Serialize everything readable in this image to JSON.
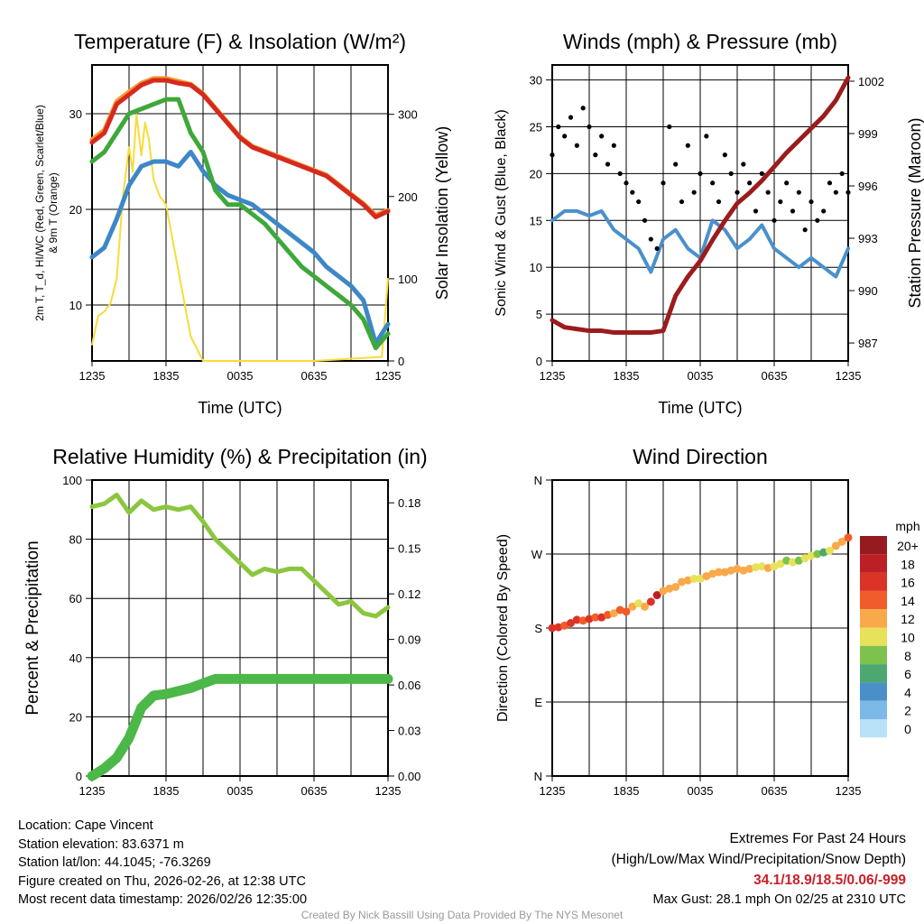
{
  "chart_data": [
    {
      "type": "line",
      "title": "Temperature (F) & Insolation (W/m²)",
      "xlabel": "Time (UTC)",
      "ylabel": "2m T, T_d, HI/WC (Red, Green, Scarlet/Blue) & 9m T (Orange)",
      "ylabel_right": "Solar Insolation (Yellow)",
      "x_hours": [
        0,
        1,
        2,
        3,
        4,
        5,
        6,
        7,
        8,
        9,
        10,
        11,
        12,
        13,
        14,
        15,
        16,
        17,
        18,
        19,
        20,
        21,
        22,
        23,
        24
      ],
      "xticks": [
        "1235",
        "1835",
        "0035",
        "0635",
        "1235"
      ],
      "ylim": [
        4.15,
        35.1
      ],
      "yticks": [
        10,
        20,
        30
      ],
      "ylim_right": [
        0,
        360
      ],
      "yticks_right": [
        0,
        100,
        200,
        300
      ],
      "series": [
        {
          "name": "2m T",
          "color": "#d62a1f",
          "axis": "left",
          "values": [
            27,
            28,
            31,
            32,
            33,
            33.5,
            33.5,
            33.2,
            33,
            32,
            30.5,
            29,
            27.5,
            26.5,
            26,
            25.5,
            25,
            24.5,
            24,
            23.5,
            22.5,
            21.5,
            20.5,
            19.2,
            19.8
          ]
        },
        {
          "name": "9m T",
          "color": "#f59a32",
          "axis": "left",
          "values": [
            27.3,
            28.3,
            31.3,
            32.3,
            33.2,
            33.7,
            33.7,
            33.4,
            33.1,
            32.1,
            30.6,
            29.1,
            27.6,
            26.6,
            26.1,
            25.6,
            25.1,
            24.6,
            24.1,
            23.6,
            22.6,
            21.6,
            20.6,
            19.4,
            19.9
          ]
        },
        {
          "name": "Td",
          "color": "#3ea83a",
          "axis": "left",
          "values": [
            25,
            26,
            28,
            30,
            30.5,
            31,
            31.5,
            31.5,
            28,
            26,
            22,
            20.5,
            20.5,
            19.5,
            18.5,
            17,
            15.5,
            14,
            13,
            12,
            11,
            10,
            8.5,
            5.5,
            7
          ]
        },
        {
          "name": "HI/WC",
          "color": "#3d87c8",
          "axis": "left",
          "values": [
            15,
            16,
            19,
            22.5,
            24.5,
            25,
            25,
            24.5,
            26,
            24,
            22.5,
            21.5,
            21,
            20.5,
            19.5,
            18.5,
            17.5,
            16.5,
            15.5,
            14,
            13,
            12,
            10.5,
            6,
            8
          ]
        },
        {
          "name": "Solar Insolation",
          "color": "#f7dc3a",
          "axis": "right",
          "x": [
            0,
            0.5,
            1,
            1.5,
            2,
            2.5,
            3,
            3.3,
            3.6,
            4,
            4.3,
            4.6,
            5,
            5.5,
            6,
            7,
            8,
            9,
            12,
            18,
            23.5,
            24
          ],
          "values": [
            20,
            55,
            60,
            70,
            100,
            200,
            260,
            230,
            300,
            250,
            290,
            270,
            220,
            200,
            190,
            110,
            30,
            0,
            0,
            0,
            5,
            100
          ]
        }
      ]
    },
    {
      "type": "line",
      "title": "Winds (mph) & Pressure (mb)",
      "xlabel": "Time (UTC)",
      "ylabel": "Sonic Wind & Gust (Blue, Black)",
      "ylabel_right": "Station Pressure (Maroon)",
      "xticks": [
        "1235",
        "1835",
        "0035",
        "0635",
        "1235"
      ],
      "ylim": [
        0,
        31.6
      ],
      "yticks": [
        0,
        5,
        10,
        15,
        20,
        25,
        30
      ],
      "ylim_right": [
        985.97,
        1002.93
      ],
      "yticks_right": [
        987,
        990,
        993,
        996,
        999,
        1002
      ],
      "series": [
        {
          "name": "Sonic Wind",
          "color": "#4a90cc",
          "axis": "left",
          "x": [
            0,
            1,
            2,
            3,
            4,
            5,
            6,
            7,
            8,
            9,
            10,
            11,
            12,
            13,
            14,
            15,
            16,
            17,
            18,
            19,
            20,
            21,
            22,
            23,
            24
          ],
          "values": [
            15,
            16,
            16,
            15.5,
            16,
            14,
            13,
            12,
            9.5,
            13,
            14,
            12,
            11,
            15,
            14,
            12,
            13,
            14.5,
            12,
            11,
            10,
            11,
            10,
            9,
            12
          ]
        },
        {
          "name": "Gust",
          "color": "#000000",
          "axis": "left",
          "type": "scatter",
          "x": [
            0,
            0.5,
            1,
            1.5,
            2,
            2.5,
            3,
            3.5,
            4,
            4.5,
            5,
            5.5,
            6,
            6.5,
            7,
            7.5,
            8,
            8.5,
            9,
            9.5,
            10,
            10.5,
            11,
            11.5,
            12,
            12.5,
            13,
            13.5,
            14,
            14.5,
            15,
            15.5,
            16,
            16.5,
            17,
            17.5,
            18,
            18.5,
            19,
            19.5,
            20,
            20.5,
            21,
            21.5,
            22,
            22.5,
            23,
            23.5,
            24
          ],
          "values": [
            22,
            25,
            24,
            26,
            23,
            27,
            25,
            22,
            24,
            21,
            23,
            20,
            19,
            18,
            17,
            15,
            13,
            12,
            19,
            25,
            21,
            17,
            23,
            18,
            20,
            24,
            19,
            17,
            22,
            20,
            18,
            21,
            19,
            16,
            20,
            18,
            15,
            17,
            19,
            16,
            18,
            14,
            17,
            15,
            16,
            19,
            18,
            20,
            18
          ]
        },
        {
          "name": "Station Pressure",
          "color": "#9b1c1c",
          "axis": "right",
          "x": [
            0,
            1,
            2,
            3,
            4,
            5,
            6,
            7,
            8,
            9,
            10,
            11,
            12,
            13,
            14,
            15,
            16,
            17,
            18,
            19,
            20,
            21,
            22,
            23,
            24
          ],
          "values": [
            988.3,
            987.9,
            987.8,
            987.7,
            987.7,
            987.6,
            987.6,
            987.6,
            987.6,
            987.7,
            989.7,
            990.8,
            991.7,
            992.9,
            994.0,
            995.0,
            995.6,
            996.3,
            997.1,
            997.9,
            998.6,
            999.3,
            1000.0,
            1000.9,
            1002.2
          ]
        }
      ]
    },
    {
      "type": "line",
      "title": "Relative Humidity (%) & Precipitation (in)",
      "ylabel": "Percent & Precipitation",
      "xticks": [
        "1235",
        "1835",
        "0035",
        "0635",
        "1235"
      ],
      "ylim": [
        0,
        100
      ],
      "yticks": [
        0,
        20,
        40,
        60,
        80,
        100
      ],
      "ylim_right": [
        0,
        0.195
      ],
      "yticks_right": [
        "0.00",
        "0.03",
        "0.06",
        "0.09",
        "0.12",
        "0.15",
        "0.18"
      ],
      "series": [
        {
          "name": "Relative Humidity",
          "color": "#8cc63f",
          "axis": "left",
          "x": [
            0,
            1,
            2,
            3,
            4,
            5,
            6,
            7,
            8,
            9,
            10,
            11,
            12,
            13,
            14,
            15,
            16,
            17,
            18,
            19,
            20,
            21,
            22,
            23,
            24
          ],
          "values": [
            91,
            92,
            95,
            89,
            93,
            90,
            91,
            90,
            91,
            86,
            80,
            76,
            72,
            68,
            70,
            69,
            70,
            70,
            66,
            62,
            58,
            59,
            55,
            54,
            57
          ]
        },
        {
          "name": "Precipitation",
          "color": "#4cb848",
          "axis": "right",
          "x": [
            0,
            1,
            2,
            3,
            4,
            5,
            6,
            7,
            8,
            9,
            10,
            11,
            12,
            13,
            14,
            15,
            16,
            17,
            18,
            19,
            20,
            21,
            22,
            23,
            24
          ],
          "values": [
            0,
            0.005,
            0.012,
            0.025,
            0.045,
            0.053,
            0.054,
            0.056,
            0.058,
            0.061,
            0.064,
            0.064,
            0.064,
            0.064,
            0.064,
            0.064,
            0.064,
            0.064,
            0.064,
            0.064,
            0.064,
            0.064,
            0.064,
            0.064,
            0.064
          ]
        }
      ]
    },
    {
      "type": "scatter",
      "title": "Wind Direction",
      "ylabel": "Direction (Colored By Speed)",
      "xticks": [
        "1235",
        "1835",
        "0035",
        "0635",
        "1235"
      ],
      "ylim": [
        0,
        360
      ],
      "yticks": [
        "N",
        "E",
        "S",
        "W",
        "N"
      ],
      "x": [
        0,
        0.5,
        1,
        1.5,
        2,
        2.5,
        3,
        3.5,
        4,
        4.5,
        5,
        5.5,
        6,
        6.5,
        7,
        7.5,
        8,
        8.5,
        9,
        9.5,
        10,
        10.5,
        11,
        11.5,
        12,
        12.5,
        13,
        13.5,
        14,
        14.5,
        15,
        15.5,
        16,
        16.5,
        17,
        17.5,
        18,
        18.5,
        19,
        19.5,
        20,
        20.5,
        21,
        21.5,
        22,
        22.5,
        23,
        23.5,
        24
      ],
      "direction_deg": [
        180,
        181,
        183,
        186,
        190,
        189,
        191,
        193,
        193,
        196,
        198,
        202,
        200,
        206,
        210,
        206,
        212,
        220,
        225,
        228,
        230,
        236,
        238,
        240,
        240,
        243,
        246,
        248,
        248,
        250,
        252,
        250,
        252,
        254,
        255,
        253,
        255,
        258,
        262,
        260,
        262,
        265,
        268,
        270,
        272,
        274,
        280,
        285,
        290
      ],
      "speed_mph": [
        16,
        16,
        15,
        17,
        16,
        15,
        16,
        15,
        16,
        14,
        13,
        15,
        14,
        12,
        11,
        12,
        17,
        18,
        12,
        13,
        12,
        13,
        12,
        11,
        11,
        12,
        12,
        12,
        12,
        13,
        12,
        13,
        12,
        11,
        11,
        12,
        11,
        10,
        9,
        10,
        8,
        10,
        10,
        9,
        7,
        10,
        12,
        13,
        14
      ],
      "legend": {
        "title": "mph",
        "labels": [
          "20+",
          "18",
          "16",
          "14",
          "12",
          "10",
          "8",
          "6",
          "4",
          "2",
          "0"
        ],
        "colors": [
          "#951b1e",
          "#bd1f26",
          "#dc3327",
          "#f15d2a",
          "#f9a94a",
          "#e8e15a",
          "#7dc24d",
          "#4ca870",
          "#4a8fc7",
          "#7cb9e6",
          "#b9e1f7"
        ]
      }
    }
  ],
  "footer_left": [
    "Location: Cape Vincent",
    "Station elevation: 83.6371 m",
    "Station lat/lon: 44.1045; -76.3269",
    "Figure created on Thu, 2026-02-26, at 12:38 UTC",
    "Most recent data timestamp: 2026/02/26 12:35:00"
  ],
  "footer_right": {
    "heading": "Extremes For Past 24 Hours",
    "subheading": "(High/Low/Max Wind/Precipitation/Snow Depth)",
    "extremes": "34.1/18.9/18.5/0.06/-999",
    "extremes_color": "#c8202a",
    "max_gust": "Max Gust: 28.1 mph On 02/25 at 2310 UTC"
  },
  "credit": "Created By Nick Bassill Using Data Provided By The NYS Mesonet"
}
